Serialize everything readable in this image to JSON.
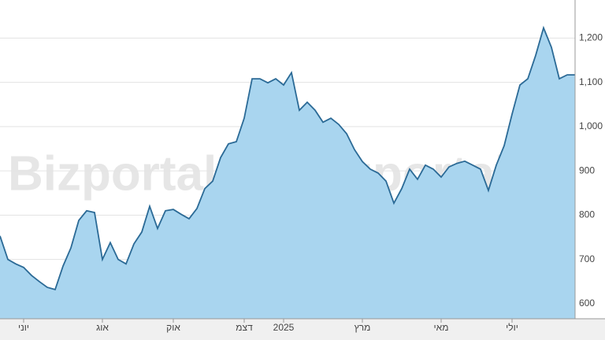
{
  "chart_data": {
    "type": "area",
    "watermark": "Bizportal",
    "x": [
      0,
      1,
      2,
      3,
      4,
      5,
      6,
      7,
      8,
      9,
      10,
      11,
      12,
      13,
      14,
      15,
      16,
      17,
      18,
      19,
      20,
      21,
      22,
      23,
      24,
      25,
      26,
      27,
      28,
      29,
      30,
      31,
      32,
      33,
      34,
      35,
      36,
      37,
      38,
      39,
      40,
      41,
      42,
      43,
      44,
      45,
      46,
      47,
      48,
      49,
      50,
      51,
      52,
      53,
      54,
      55,
      56,
      57,
      58,
      59,
      60,
      61,
      62,
      63,
      64,
      65,
      66,
      67,
      68,
      69,
      70,
      71,
      72,
      73
    ],
    "series": [
      {
        "color": "#2b6a96",
        "fill": "#a9d5ef",
        "values": [
          753,
          700,
          690,
          682,
          664,
          650,
          637,
          632,
          685,
          726,
          788,
          810,
          806,
          700,
          738,
          700,
          690,
          735,
          762,
          820,
          770,
          810,
          813,
          802,
          792,
          815,
          860,
          877,
          930,
          961,
          966,
          1019,
          1108,
          1108,
          1099,
          1108,
          1094,
          1122,
          1037,
          1055,
          1037,
          1010,
          1019,
          1005,
          984,
          948,
          921,
          904,
          895,
          877,
          827,
          860,
          904,
          881,
          913,
          904,
          886,
          909,
          917,
          922,
          913,
          904,
          856,
          913,
          957,
          1028,
          1094,
          1108,
          1161,
          1223,
          1179,
          1108,
          1117,
          1117
        ]
      }
    ],
    "xlim": [
      0,
      73
    ],
    "xticks": [
      {
        "value": 3,
        "label": "יוני"
      },
      {
        "value": 13,
        "label": "אוג"
      },
      {
        "value": 22,
        "label": "אוק"
      },
      {
        "value": 31,
        "label": "דצמ"
      },
      {
        "value": 36,
        "label": "2025"
      },
      {
        "value": 46,
        "label": "מרץ"
      },
      {
        "value": 56,
        "label": "מאי"
      },
      {
        "value": 65,
        "label": "יולי"
      }
    ],
    "ylim": [
      566,
      1286
    ],
    "yticks": [
      600,
      700,
      800,
      900,
      {
        "value": 1000,
        "label": "1,000"
      },
      {
        "value": 1100,
        "label": "1,100"
      },
      {
        "value": 1200,
        "label": "1,200"
      }
    ],
    "grid": true
  }
}
